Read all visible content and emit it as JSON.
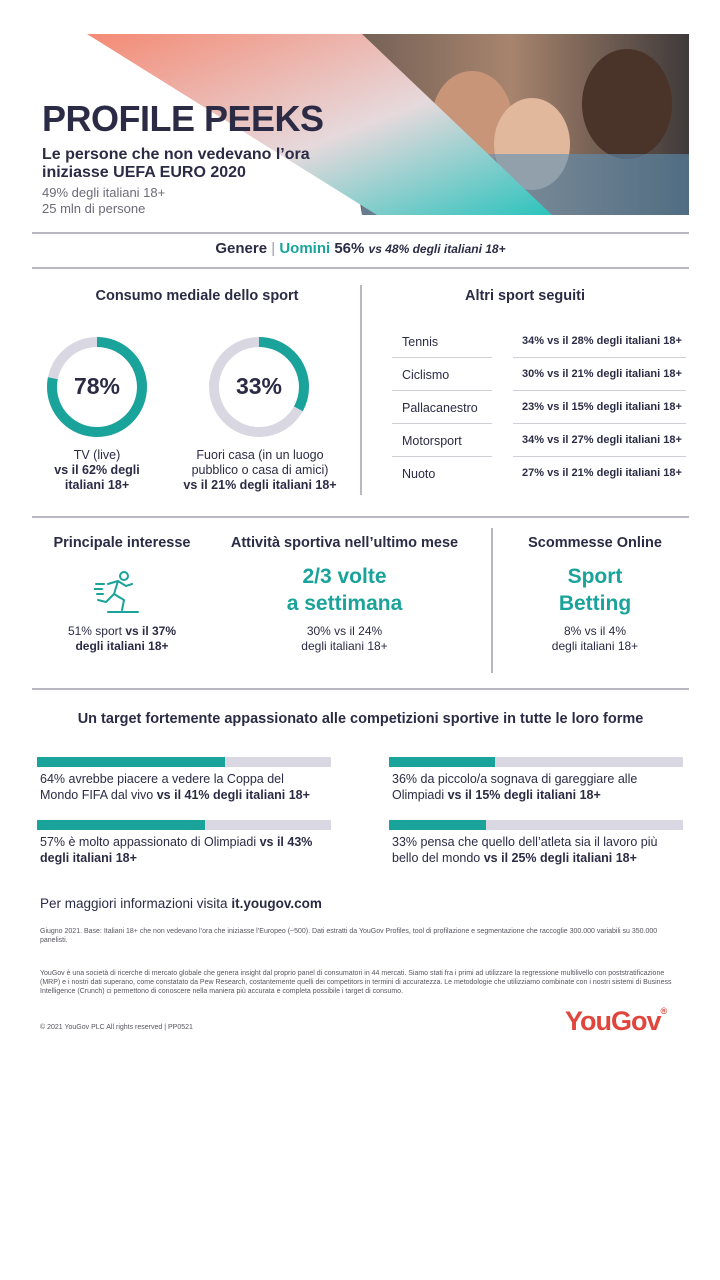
{
  "header": {
    "title": "PROFILE PEEKS",
    "subtitle": "Le persone che non vedevano l’ora iniziasse UEFA EURO 2020",
    "stat1": "49% degli italiani 18+",
    "stat2": "25 mln di persone"
  },
  "gender": {
    "label": "Genere",
    "separator": "|",
    "value": "Uomini",
    "percent": "56%",
    "compare": "vs 48% degli italiani 18+"
  },
  "media": {
    "title": "Consumo mediale dello sport",
    "donuts": [
      {
        "value": 78,
        "value_label": "78%",
        "line1": "TV (live)",
        "line2": "vs il 62% degli",
        "line3": "italiani 18+"
      },
      {
        "value": 33,
        "value_label": "33%",
        "line1": "Fuori casa (in un luogo",
        "line2": "pubblico o casa di amici)",
        "line3": "vs il 21% degli italiani 18+"
      }
    ],
    "colors": {
      "fill": "#1aa39a",
      "track": "#d9d7e2"
    }
  },
  "other_sports": {
    "title": "Altri sport seguiti",
    "items": [
      {
        "name": "Tennis",
        "value": "34% vs il 28% degli italiani 18+"
      },
      {
        "name": "Ciclismo",
        "value": "30% vs il 21% degli italiani 18+"
      },
      {
        "name": "Pallacanestro",
        "value": "23% vs il 15% degli italiani 18+"
      },
      {
        "name": "Motorsport",
        "value": "34% vs il 27% degli italiani 18+"
      },
      {
        "name": "Nuoto",
        "value": "27% vs il 21% degli italiani 18+"
      }
    ]
  },
  "interest": {
    "title": "Principale interesse",
    "icon": "running-person-icon",
    "line1_pct": "51% sport",
    "line1_vs": "vs il 37%",
    "line2": "degli italiani 18+"
  },
  "activity": {
    "title": "Attività sportiva nell’ultimo mese",
    "big1": "2/3 volte",
    "big2": "a settimana",
    "line1": "30% vs il 24%",
    "line2": "degli italiani 18+"
  },
  "betting": {
    "title": "Scommesse Online",
    "big1": "Sport",
    "big2": "Betting",
    "line1": "8% vs il 4%",
    "line2": "degli italiani 18+"
  },
  "passion": {
    "title": "Un target fortemente appassionato alle competizioni sportive in tutte le loro forme",
    "items": [
      {
        "value": 64,
        "line1": "64% avrebbe piacere a vedere la Coppa del",
        "line2_plain": "Mondo FIFA dal vivo ",
        "line2_bold": "vs il 41% degli italiani 18+"
      },
      {
        "value": 36,
        "line1": "36% da piccolo/a sognava di gareggiare alle",
        "line2_plain": "Olimpiadi ",
        "line2_bold": "vs il 15% degli italiani 18+"
      },
      {
        "value": 57,
        "line1_plain": "57% è molto appassionato di Olimpiadi ",
        "line1_bold": "vs il 43%",
        "line2_bold": "degli italiani 18+"
      },
      {
        "value": 33,
        "line1": "33% pensa che quello dell’atleta sia il lavoro più",
        "line2_plain": "bello del mondo ",
        "line2_bold": "vs il 25% degli italiani 18+"
      }
    ]
  },
  "footer": {
    "info_plain": "Per maggiori informazioni visita ",
    "info_link": "it.yougov.com",
    "note1": "Giugno 2021. Base: Italiani 18+ che non vedevano l’ora che iniziasse l’Europeo (~500). Dati estratti da YouGov Profiles, tool di profilazione e segmentazione che raccoglie 300.000 variabili su 350.000 panelisti.",
    "note2": "YouGov è una società di ricerche di mercato globale che genera insight dal proprio panel di consumatori in 44 mercati. Siamo stati fra i primi ad utilizzare la regressione multilivello con poststratificazione (MRP) e i nostri dati superano, come constatato da Pew Research, costantemente quelli dei competitors in termini di accuratezza. Le metodologie che utilizziamo combinate con i nostri sistemi di Business Intelligence (Crunch) ci permettono di conoscere nella maniera più accurata e completa possibile i target di consumo.",
    "copyright": "© 2021 YouGov PLC All rights reserved | PP0521",
    "logo": "YouGov",
    "logo_mark": "®"
  }
}
